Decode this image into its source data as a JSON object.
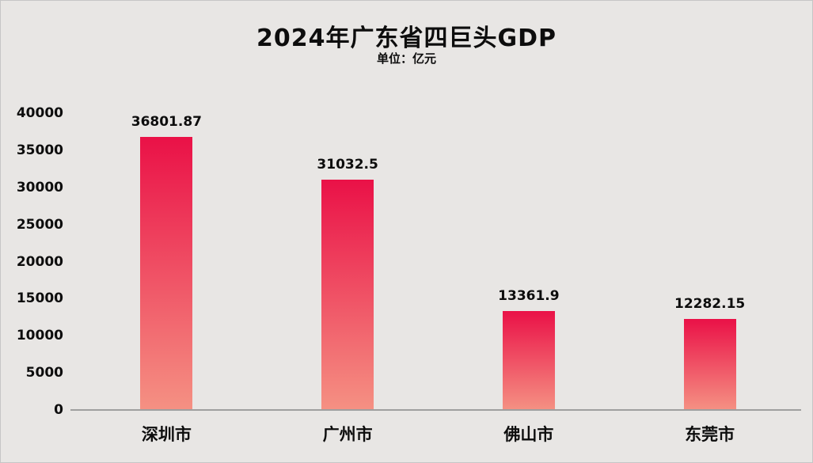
{
  "chart_data": {
    "type": "bar",
    "title": "2024年广东省四巨头GDP",
    "subtitle": "单位：亿元",
    "categories": [
      "深圳市",
      "广州市",
      "佛山市",
      "东莞市"
    ],
    "values": [
      36801.87,
      31032.5,
      13361.9,
      12282.15
    ],
    "value_labels": [
      "36801.87",
      "31032.5",
      "13361.9",
      "12282.15"
    ],
    "xlabel": "",
    "ylabel": "",
    "ylim": [
      0,
      40000
    ],
    "ytick_interval": 5000,
    "ytick_labels": [
      "0",
      "5000",
      "10000",
      "15000",
      "20000",
      "25000",
      "30000",
      "35000",
      "40000"
    ],
    "grid": false,
    "legend": false,
    "colors": {
      "background": "#e8e6e4",
      "bar_gradient_top": "#ea1147",
      "bar_gradient_bottom": "#f59183",
      "text": "#0d0d0d",
      "axis_line": "#9f9f9f"
    }
  }
}
